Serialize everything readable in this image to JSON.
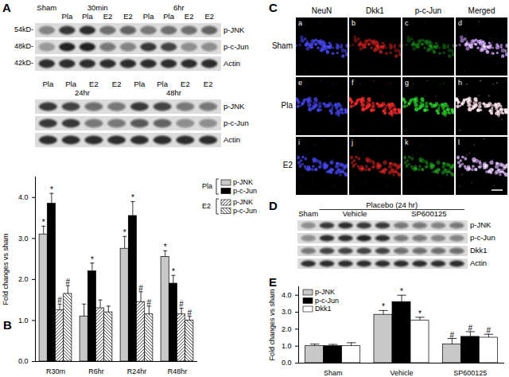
{
  "figure": {
    "A": {
      "label": "A",
      "blots": [
        {
          "groups_position": "above",
          "groups": [
            {
              "label": "Sham",
              "lanes": 1
            },
            {
              "label": "30min",
              "lanes": 4
            },
            {
              "label": "6hr",
              "lanes": 4
            }
          ],
          "lanes": [
            null,
            "Pla",
            "Pla",
            "E2",
            "E2",
            "Pla",
            "Pla",
            "E2",
            "E2"
          ],
          "rows": [
            {
              "name": "p-JNK",
              "size": "54kD-",
              "intensity": [
                0.45,
                0.8,
                0.85,
                0.55,
                0.6,
                0.5,
                0.55,
                0.55,
                0.6
              ]
            },
            {
              "name": "p-c-Jun",
              "size": "48kD-",
              "intensity": [
                0.35,
                0.9,
                0.9,
                0.5,
                0.45,
                0.8,
                0.75,
                0.4,
                0.4
              ]
            },
            {
              "name": "Actin",
              "size": "42kD-",
              "intensity": [
                0.85,
                0.85,
                0.85,
                0.85,
                0.85,
                0.85,
                0.85,
                0.85,
                0.85
              ]
            }
          ]
        },
        {
          "groups_position": "below",
          "groups": [
            {
              "label": "24hr",
              "lanes": 4
            },
            {
              "label": "48hr",
              "lanes": 4
            }
          ],
          "lanes": [
            "Pla",
            "Pla",
            "E2",
            "E2",
            "Pla",
            "Pla",
            "E2",
            "E2"
          ],
          "rows": [
            {
              "name": "p-JNK",
              "intensity": [
                0.8,
                0.75,
                0.55,
                0.5,
                0.8,
                0.75,
                0.5,
                0.5
              ]
            },
            {
              "name": "p-c-Jun",
              "intensity": [
                0.8,
                0.8,
                0.5,
                0.5,
                0.65,
                0.6,
                0.4,
                0.4
              ]
            },
            {
              "name": "Actin",
              "intensity": [
                0.85,
                0.85,
                0.85,
                0.85,
                0.85,
                0.85,
                0.85,
                0.85
              ]
            }
          ]
        }
      ]
    },
    "C": {
      "label": "C",
      "columns": [
        {
          "name": "NeuN",
          "color": "#4a4aff"
        },
        {
          "name": "Dkk1",
          "color": "#ff2a2a"
        },
        {
          "name": "p-c-Jun",
          "color": "#2ee02e"
        },
        {
          "name": "Merged"
        }
      ],
      "rows": [
        {
          "name": "Sham",
          "panels": [
            "a",
            "b",
            "c",
            "d"
          ],
          "intensity": [
            0.85,
            0.55,
            0.35
          ]
        },
        {
          "name": "Pla",
          "panels": [
            "e",
            "f",
            "g",
            "h"
          ],
          "intensity": [
            0.85,
            0.95,
            0.85
          ]
        },
        {
          "name": "E2",
          "panels": [
            "i",
            "j",
            "k",
            "l"
          ],
          "intensity": [
            0.85,
            0.6,
            0.45
          ]
        }
      ]
    },
    "D": {
      "label": "D",
      "blots": [
        {
          "header": {
            "label": "Placebo (24 hr)",
            "groups": [
              "Vehicle",
              "SP600125"
            ]
          },
          "groups_position": "above",
          "groups": [
            {
              "label": "Sham",
              "lanes": 1
            },
            {
              "label": "Vehicle",
              "lanes": 4
            },
            {
              "label": "SP600125",
              "lanes": 4
            }
          ],
          "rows": [
            {
              "name": "p-JNK",
              "intensity": [
                0.4,
                0.8,
                0.85,
                0.8,
                0.8,
                0.5,
                0.5,
                0.45,
                0.5
              ]
            },
            {
              "name": "p-c-Jun",
              "intensity": [
                0.4,
                0.85,
                0.85,
                0.9,
                0.85,
                0.5,
                0.5,
                0.45,
                0.45
              ]
            },
            {
              "name": "Dkk1",
              "intensity": [
                0.5,
                0.75,
                0.75,
                0.75,
                0.75,
                0.55,
                0.55,
                0.55,
                0.55
              ]
            },
            {
              "name": "Actin",
              "intensity": [
                0.85,
                0.85,
                0.85,
                0.85,
                0.85,
                0.85,
                0.85,
                0.85,
                0.85
              ]
            }
          ]
        }
      ]
    }
  },
  "chart_data": [
    {
      "type": "bar",
      "title": "B",
      "categories": [
        "R30m",
        "R6hr",
        "R24hr",
        "R48hr"
      ],
      "ylabel": "Fold changes vs sham",
      "ylim": [
        0,
        4.5
      ],
      "yticks": [
        0,
        1,
        2,
        3,
        4
      ],
      "legend": "top-right",
      "series": [
        {
          "name": "p-JNK",
          "group": "Pla",
          "color": "#c8c8c8",
          "line_style": "solid",
          "values": [
            3.1,
            1.1,
            2.75,
            2.55
          ],
          "errors": [
            0.2,
            0.3,
            0.3,
            0.15
          ],
          "annotations": [
            "*",
            null,
            "*",
            "*"
          ]
        },
        {
          "name": "p-c-Jun",
          "group": "Pla",
          "color": "#000000",
          "line_style": "solid",
          "values": [
            3.85,
            2.2,
            3.55,
            1.9
          ],
          "errors": [
            0.25,
            0.2,
            0.35,
            0.2
          ],
          "annotations": [
            "*",
            "*",
            "*",
            "*"
          ]
        },
        {
          "name": "p-JNK",
          "group": "E2",
          "color": "#ffffff",
          "line_style": "hatched",
          "values": [
            1.25,
            1.3,
            1.45,
            1.15
          ],
          "errors": [
            0.15,
            0.2,
            0.25,
            0.15
          ],
          "annotations": [
            "#",
            null,
            "#",
            "#"
          ]
        },
        {
          "name": "p-c-Jun",
          "group": "E2",
          "color": "#ffffff",
          "line_style": "backhatched",
          "values": [
            1.65,
            1.2,
            1.15,
            1.0
          ],
          "errors": [
            0.2,
            0.15,
            0.2,
            0.1
          ],
          "annotations": [
            "#",
            null,
            "#",
            "#"
          ]
        }
      ]
    },
    {
      "type": "bar",
      "title": "E",
      "categories": [
        "Sham",
        "Vehicle",
        "SP600125"
      ],
      "ylabel": "Fold changes vs sham",
      "ylim": [
        0,
        4.5
      ],
      "yticks": [
        0,
        1,
        2,
        3,
        4
      ],
      "legend": "top-left",
      "series": [
        {
          "name": "p-JNK",
          "color": "#c8c8c8",
          "line_style": "solid",
          "values": [
            1,
            2.85,
            1.1
          ],
          "errors": [
            0.12,
            0.25,
            0.35
          ],
          "annotations": [
            null,
            "*",
            "#"
          ]
        },
        {
          "name": "p-c-Jun",
          "color": "#000000",
          "line_style": "solid",
          "values": [
            1,
            3.6,
            1.55
          ],
          "errors": [
            0.1,
            0.4,
            0.3
          ],
          "annotations": [
            null,
            "*",
            "#"
          ]
        },
        {
          "name": "Dkk1",
          "color": "#ffffff",
          "line_style": "solid",
          "values": [
            1,
            2.5,
            1.5
          ],
          "errors": [
            0.2,
            0.2,
            0.2
          ],
          "annotations": [
            null,
            "*",
            "#"
          ]
        }
      ]
    }
  ]
}
